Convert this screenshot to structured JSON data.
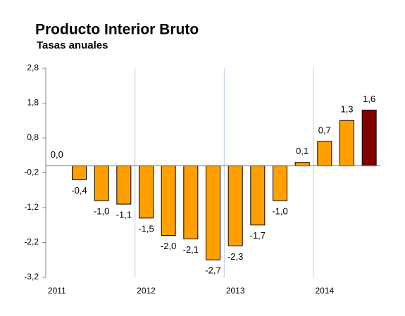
{
  "chart_data": {
    "type": "bar",
    "title": "Producto Interior Bruto",
    "subtitle": "Tasas anuales",
    "categories": [
      "2011",
      null,
      null,
      null,
      "2012",
      null,
      null,
      null,
      "2013",
      null,
      null,
      null,
      "2014",
      null,
      null
    ],
    "values": [
      0.0,
      -0.4,
      -1.0,
      -1.1,
      -1.5,
      -2.0,
      -2.1,
      -2.7,
      -2.3,
      -1.7,
      -1.0,
      0.1,
      0.7,
      1.3,
      1.6
    ],
    "value_labels": [
      "0,0",
      "-0,4",
      "-1,0",
      "-1,1",
      "-1,5",
      "-2,0",
      "-2,1",
      "-2,7",
      "-2,3",
      "-1,7",
      "-1,0",
      "0,1",
      "0,7",
      "1,3",
      "1,6"
    ],
    "colors": [
      "#FF9F00",
      "#FF9F00",
      "#FF9F00",
      "#FF9F00",
      "#FF9F00",
      "#FF9F00",
      "#FF9F00",
      "#FF9F00",
      "#FF9F00",
      "#FF9F00",
      "#FF9F00",
      "#FF9F00",
      "#FF9F00",
      "#FF9F00",
      "#800000"
    ],
    "ylim": [
      -3.2,
      2.8
    ],
    "yticks": [
      {
        "value": -3.2,
        "label": "-3,2"
      },
      {
        "value": -2.2,
        "label": "-2,2"
      },
      {
        "value": -1.2,
        "label": "-1,2"
      },
      {
        "value": -0.2,
        "label": "-0,2"
      },
      {
        "value": 0.8,
        "label": "0,8"
      },
      {
        "value": 1.8,
        "label": "1,8"
      },
      {
        "value": 2.8,
        "label": "2,8"
      }
    ]
  }
}
